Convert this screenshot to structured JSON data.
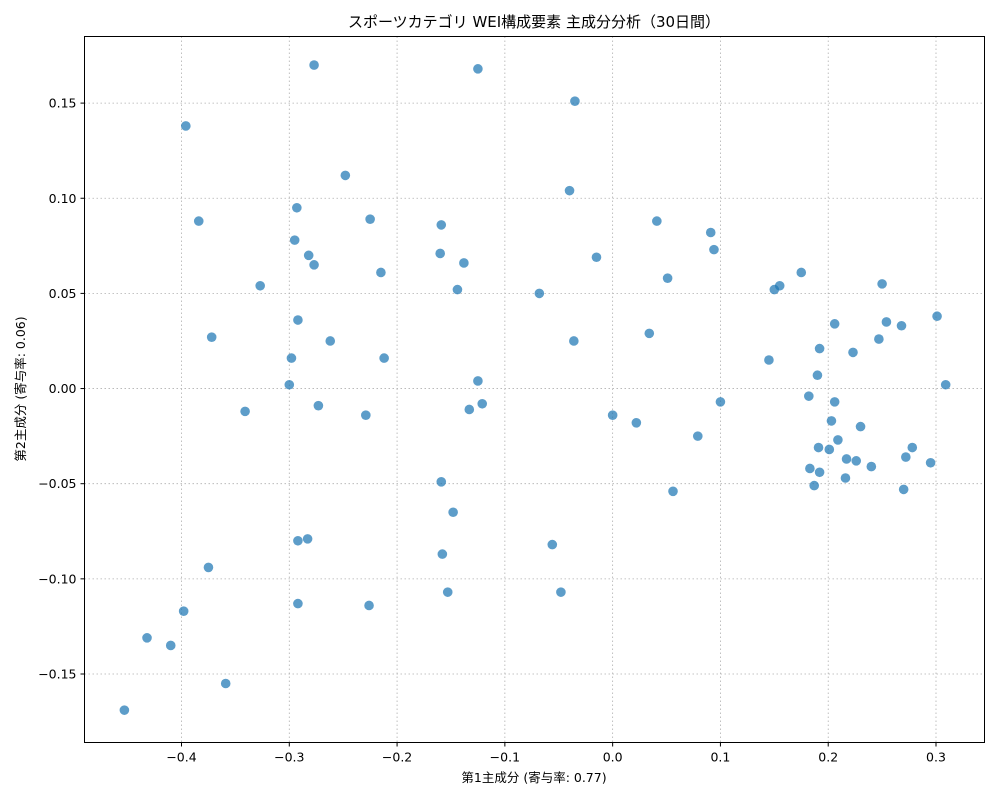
{
  "chart_data": {
    "type": "scatter",
    "title": "スポーツカテゴリ WEI構成要素 主成分分析（30日間）",
    "xlabel": "第1主成分 (寄与率: 0.77)",
    "ylabel": "第2主成分 (寄与率: 0.06)",
    "xlim": [
      -0.49,
      0.345
    ],
    "ylim": [
      -0.186,
      0.185
    ],
    "xticks": [
      -0.4,
      -0.3,
      -0.2,
      -0.1,
      0.0,
      0.1,
      0.2,
      0.3
    ],
    "xtick_labels": [
      "−0.4",
      "−0.3",
      "−0.2",
      "−0.1",
      "0.0",
      "0.1",
      "0.2",
      "0.3"
    ],
    "yticks": [
      -0.15,
      -0.1,
      -0.05,
      0.0,
      0.05,
      0.1,
      0.15
    ],
    "ytick_labels": [
      "−0.15",
      "−0.10",
      "−0.05",
      "0.00",
      "0.05",
      "0.10",
      "0.15"
    ],
    "grid": true,
    "color": "#1f77b4",
    "points": [
      [
        -0.453,
        -0.169
      ],
      [
        -0.432,
        -0.131
      ],
      [
        -0.41,
        -0.135
      ],
      [
        -0.398,
        -0.117
      ],
      [
        -0.396,
        0.138
      ],
      [
        -0.384,
        0.088
      ],
      [
        -0.375,
        -0.094
      ],
      [
        -0.372,
        0.027
      ],
      [
        -0.359,
        -0.155
      ],
      [
        -0.341,
        -0.012
      ],
      [
        -0.327,
        0.054
      ],
      [
        -0.3,
        0.002
      ],
      [
        -0.298,
        0.016
      ],
      [
        -0.295,
        0.078
      ],
      [
        -0.293,
        0.095
      ],
      [
        -0.292,
        0.036
      ],
      [
        -0.292,
        -0.08
      ],
      [
        -0.292,
        -0.113
      ],
      [
        -0.282,
        0.07
      ],
      [
        -0.283,
        -0.079
      ],
      [
        -0.277,
        0.17
      ],
      [
        -0.277,
        0.065
      ],
      [
        -0.273,
        -0.009
      ],
      [
        -0.262,
        0.025
      ],
      [
        -0.248,
        0.112
      ],
      [
        -0.229,
        -0.014
      ],
      [
        -0.226,
        -0.114
      ],
      [
        -0.225,
        0.089
      ],
      [
        -0.215,
        0.061
      ],
      [
        -0.212,
        0.016
      ],
      [
        -0.16,
        0.071
      ],
      [
        -0.159,
        0.086
      ],
      [
        -0.159,
        -0.049
      ],
      [
        -0.158,
        -0.087
      ],
      [
        -0.153,
        -0.107
      ],
      [
        -0.148,
        -0.065
      ],
      [
        -0.144,
        0.052
      ],
      [
        -0.138,
        0.066
      ],
      [
        -0.133,
        -0.011
      ],
      [
        -0.125,
        0.168
      ],
      [
        -0.125,
        0.004
      ],
      [
        -0.121,
        -0.008
      ],
      [
        -0.068,
        0.05
      ],
      [
        -0.056,
        -0.082
      ],
      [
        -0.048,
        -0.107
      ],
      [
        -0.04,
        0.104
      ],
      [
        -0.035,
        0.151
      ],
      [
        -0.036,
        0.025
      ],
      [
        -0.015,
        0.069
      ],
      [
        0.0,
        -0.014
      ],
      [
        0.022,
        -0.018
      ],
      [
        0.034,
        0.029
      ],
      [
        0.041,
        0.088
      ],
      [
        0.051,
        0.058
      ],
      [
        0.056,
        -0.054
      ],
      [
        0.079,
        -0.025
      ],
      [
        0.091,
        0.082
      ],
      [
        0.094,
        0.073
      ],
      [
        0.1,
        -0.007
      ],
      [
        0.145,
        0.015
      ],
      [
        0.15,
        0.052
      ],
      [
        0.155,
        0.054
      ],
      [
        0.175,
        0.061
      ],
      [
        0.182,
        -0.004
      ],
      [
        0.183,
        -0.042
      ],
      [
        0.187,
        -0.051
      ],
      [
        0.19,
        0.007
      ],
      [
        0.191,
        -0.031
      ],
      [
        0.192,
        0.021
      ],
      [
        0.192,
        -0.044
      ],
      [
        0.201,
        -0.032
      ],
      [
        0.203,
        -0.017
      ],
      [
        0.206,
        0.034
      ],
      [
        0.206,
        -0.007
      ],
      [
        0.209,
        -0.027
      ],
      [
        0.216,
        -0.047
      ],
      [
        0.217,
        -0.037
      ],
      [
        0.223,
        0.019
      ],
      [
        0.226,
        -0.038
      ],
      [
        0.23,
        -0.02
      ],
      [
        0.24,
        -0.041
      ],
      [
        0.247,
        0.026
      ],
      [
        0.25,
        0.055
      ],
      [
        0.254,
        0.035
      ],
      [
        0.268,
        0.033
      ],
      [
        0.27,
        -0.053
      ],
      [
        0.272,
        -0.036
      ],
      [
        0.278,
        -0.031
      ],
      [
        0.295,
        -0.039
      ],
      [
        0.301,
        0.038
      ],
      [
        0.309,
        0.002
      ]
    ]
  }
}
